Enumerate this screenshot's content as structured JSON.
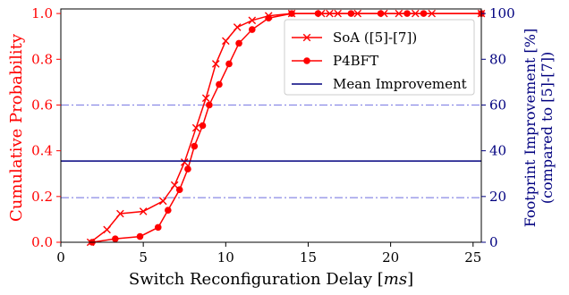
{
  "chart_data": {
    "type": "line",
    "title": "",
    "xlabel": "Switch Reconfiguration Delay [ms]",
    "ylabel_left": "Cumulative Probability",
    "ylabel_right_line1": "Footprint Improvement [%]",
    "ylabel_right_line2": "(compared to [5]-[7])",
    "xlim": [
      0,
      25.5
    ],
    "ylim_left": [
      0,
      1.02
    ],
    "ylim_right": [
      0,
      102
    ],
    "x_ticks": [
      0,
      5,
      10,
      15,
      20,
      25
    ],
    "x_tick_labels": [
      "0",
      "5",
      "10",
      "15",
      "20",
      "25"
    ],
    "y_left_ticks": [
      0.0,
      0.2,
      0.4,
      0.6,
      0.8,
      1.0
    ],
    "y_left_tick_labels": [
      "0.0",
      "0.2",
      "0.4",
      "0.6",
      "0.8",
      "1.0"
    ],
    "y_right_ticks": [
      0,
      20,
      40,
      60,
      80,
      100
    ],
    "y_right_tick_labels": [
      "0",
      "20",
      "40",
      "60",
      "80",
      "100"
    ],
    "grid": false,
    "legend_position": "top-right",
    "series": [
      {
        "name": "SoA ([5]-[7])",
        "axis": "left",
        "color": "#ff0000",
        "marker": "x",
        "x": [
          1.8,
          2.8,
          3.6,
          5.0,
          6.2,
          6.9,
          7.5,
          8.2,
          8.8,
          9.4,
          10.0,
          10.7,
          11.6,
          12.6,
          14.0,
          15.8,
          16.3,
          16.8,
          18.0,
          19.6,
          20.5,
          21.5,
          22.5,
          25.5
        ],
        "y": [
          0.0,
          0.055,
          0.125,
          0.135,
          0.18,
          0.25,
          0.35,
          0.5,
          0.63,
          0.78,
          0.88,
          0.94,
          0.97,
          0.99,
          1.0,
          1.0,
          1.0,
          1.0,
          1.0,
          1.0,
          1.0,
          1.0,
          1.0,
          1.0
        ]
      },
      {
        "name": "P4BFT",
        "axis": "left",
        "color": "#ff0000",
        "marker": "o",
        "x": [
          1.9,
          3.3,
          4.8,
          5.9,
          6.5,
          7.2,
          7.7,
          8.1,
          8.6,
          9.0,
          9.6,
          10.2,
          10.8,
          11.6,
          12.6,
          14.0,
          15.6,
          17.6,
          19.4,
          21.0,
          22.0,
          25.5
        ],
        "y": [
          0.0,
          0.015,
          0.025,
          0.065,
          0.14,
          0.23,
          0.32,
          0.42,
          0.51,
          0.6,
          0.69,
          0.78,
          0.87,
          0.93,
          0.98,
          1.0,
          1.0,
          1.0,
          1.0,
          1.0,
          1.0,
          1.0
        ]
      },
      {
        "name": "Mean Improvement",
        "axis": "right",
        "color": "#00007f",
        "style": "solid",
        "value": 35.5
      }
    ],
    "reference_lines": [
      {
        "axis": "right",
        "value": 60,
        "style": "dashdot",
        "color": "#8a8ae6"
      },
      {
        "axis": "right",
        "value": 19.5,
        "style": "dashdot",
        "color": "#8a8ae6"
      }
    ],
    "colors": {
      "left_axis": "#ff0000",
      "right_axis": "#00007f",
      "reference": "#8a8ae6"
    }
  }
}
